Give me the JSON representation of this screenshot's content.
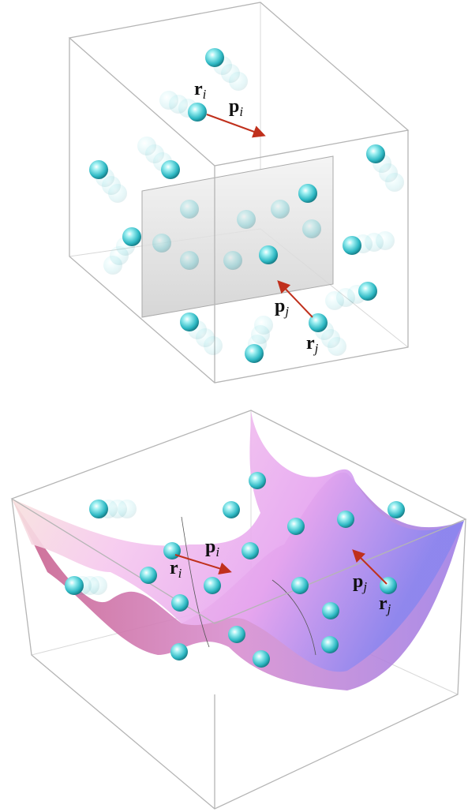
{
  "panels": [
    {
      "labels": [
        {
          "main": "r",
          "sub": "i"
        },
        {
          "main": "p",
          "sub": "i"
        },
        {
          "main": "p",
          "sub": "j"
        },
        {
          "main": "r",
          "sub": "j"
        }
      ]
    },
    {
      "labels": [
        {
          "main": "r",
          "sub": "i"
        },
        {
          "main": "p",
          "sub": "i"
        },
        {
          "main": "p",
          "sub": "j"
        },
        {
          "main": "r",
          "sub": "j"
        }
      ]
    }
  ]
}
